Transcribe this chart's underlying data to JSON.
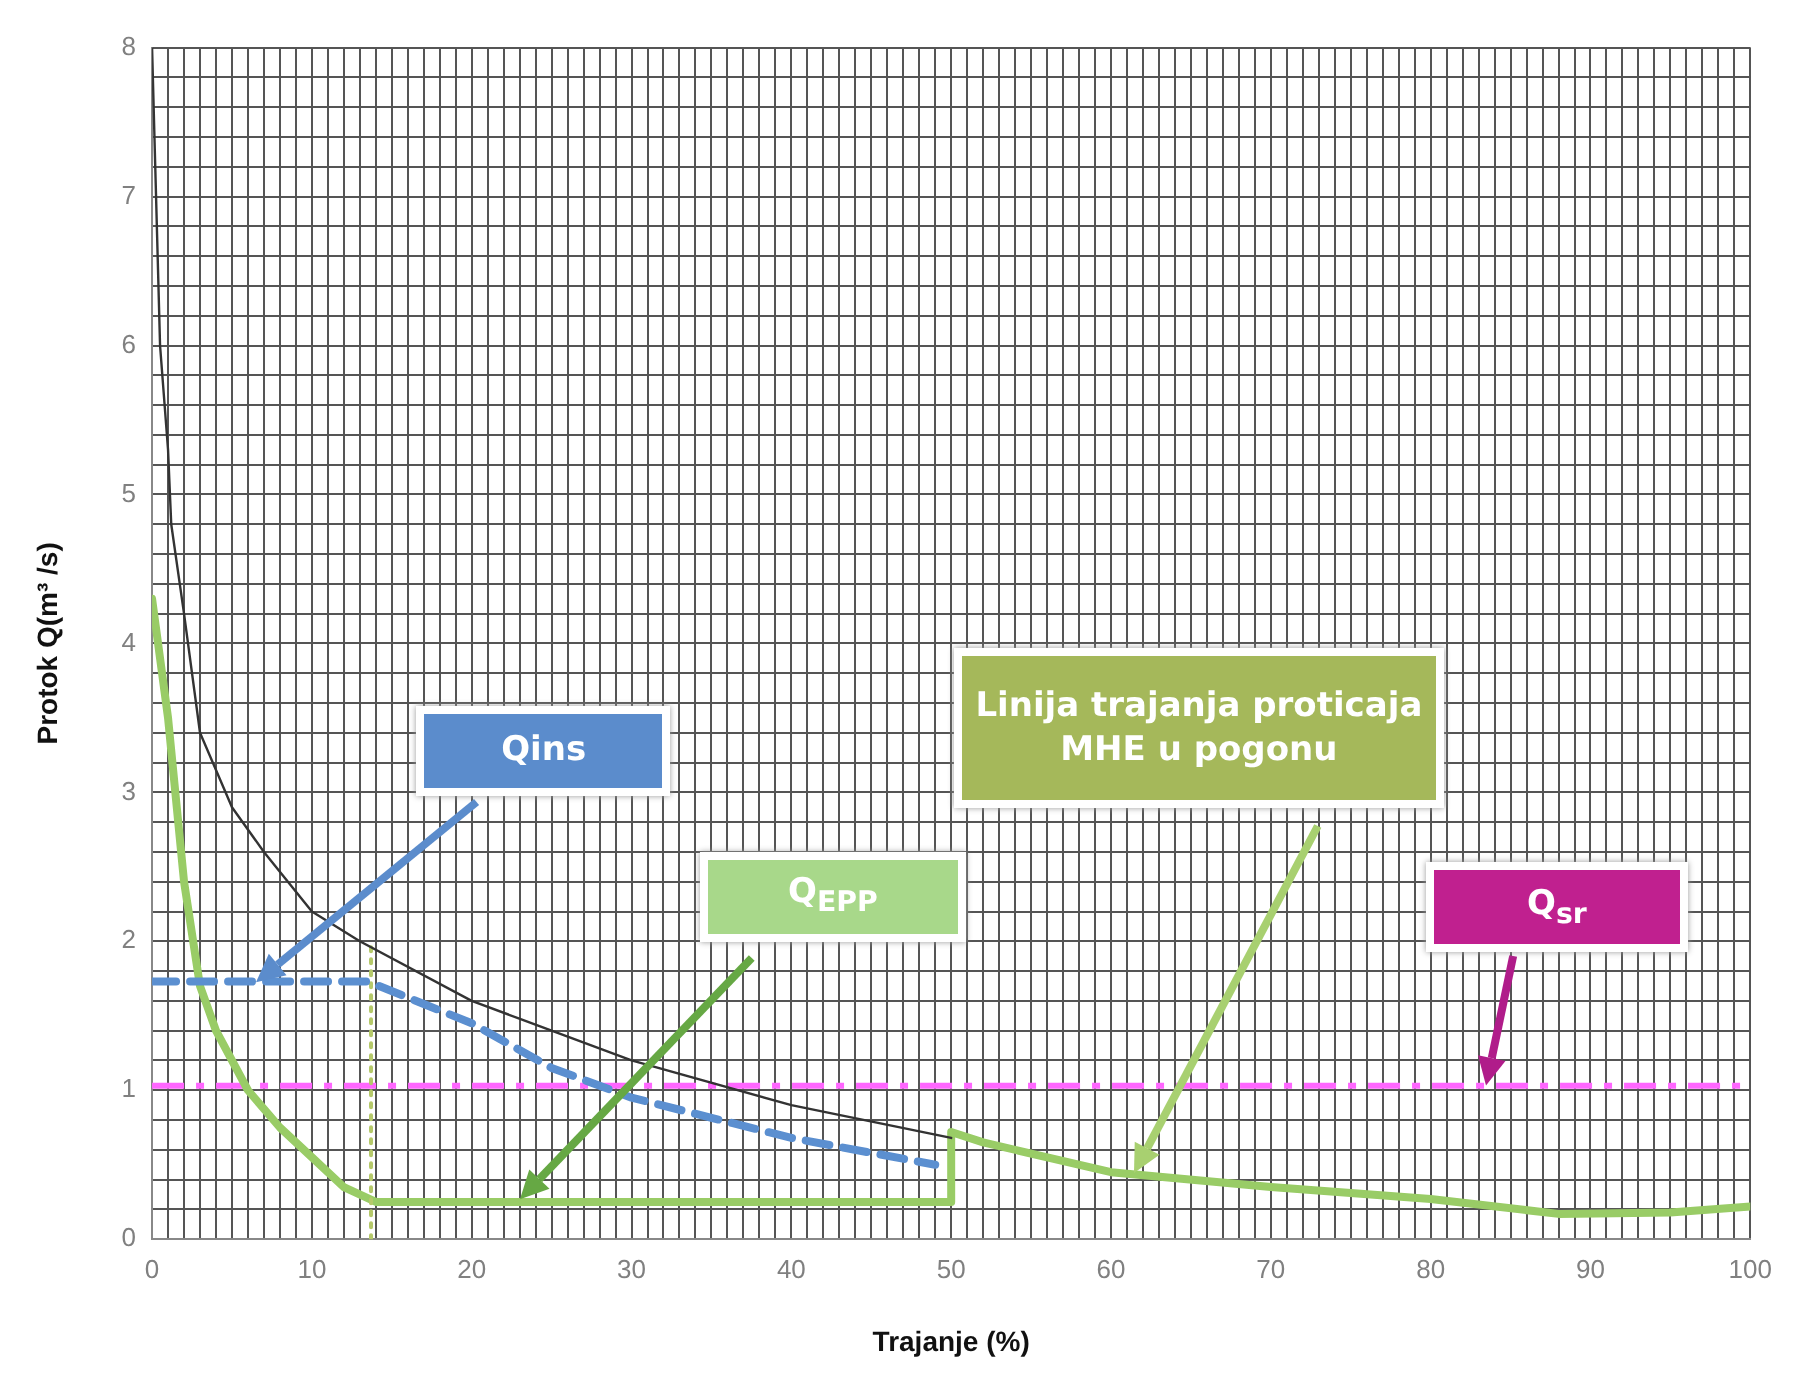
{
  "chart_data": {
    "type": "line",
    "xlabel": "Trajanje (%)",
    "ylabel": "Protok Q(m³ /s)",
    "xlim": [
      0,
      100
    ],
    "ylim": [
      0,
      8
    ],
    "xticks": [
      0,
      {
        "value": 1,
        "label": null
      },
      {
        "value": 2,
        "label": null
      },
      {
        "value": 3,
        "label": null
      },
      {
        "value": 4,
        "label": null
      },
      {
        "value": 5,
        "label": null
      },
      {
        "value": 6,
        "label": null
      },
      {
        "value": 7,
        "label": null
      },
      {
        "value": 8,
        "label": null
      },
      {
        "value": 9,
        "label": null
      },
      10,
      {
        "value": 11,
        "label": null
      },
      {
        "value": 12,
        "label": null
      },
      {
        "value": 13,
        "label": null
      },
      {
        "value": 14,
        "label": null
      },
      {
        "value": 15,
        "label": null
      },
      {
        "value": 16,
        "label": null
      },
      {
        "value": 17,
        "label": null
      },
      {
        "value": 18,
        "label": null
      },
      {
        "value": 19,
        "label": null
      },
      20,
      {
        "value": 21,
        "label": null
      },
      {
        "value": 22,
        "label": null
      },
      {
        "value": 23,
        "label": null
      },
      {
        "value": 24,
        "label": null
      },
      {
        "value": 25,
        "label": null
      },
      {
        "value": 26,
        "label": null
      },
      {
        "value": 27,
        "label": null
      },
      {
        "value": 28,
        "label": null
      },
      {
        "value": 29,
        "label": null
      },
      30,
      {
        "value": 31,
        "label": null
      },
      {
        "value": 32,
        "label": null
      },
      {
        "value": 33,
        "label": null
      },
      {
        "value": 34,
        "label": null
      },
      {
        "value": 35,
        "label": null
      },
      {
        "value": 36,
        "label": null
      },
      {
        "value": 37,
        "label": null
      },
      {
        "value": 38,
        "label": null
      },
      {
        "value": 39,
        "label": null
      },
      40,
      {
        "value": 41,
        "label": null
      },
      {
        "value": 42,
        "label": null
      },
      {
        "value": 43,
        "label": null
      },
      {
        "value": 44,
        "label": null
      },
      {
        "value": 45,
        "label": null
      },
      {
        "value": 46,
        "label": null
      },
      {
        "value": 47,
        "label": null
      },
      {
        "value": 48,
        "label": null
      },
      {
        "value": 49,
        "label": null
      },
      50,
      {
        "value": 51,
        "label": null
      },
      {
        "value": 52,
        "label": null
      },
      {
        "value": 53,
        "label": null
      },
      {
        "value": 54,
        "label": null
      },
      {
        "value": 55,
        "label": null
      },
      {
        "value": 56,
        "label": null
      },
      {
        "value": 57,
        "label": null
      },
      {
        "value": 58,
        "label": null
      },
      {
        "value": 59,
        "label": null
      },
      60,
      {
        "value": 61,
        "label": null
      },
      {
        "value": 62,
        "label": null
      },
      {
        "value": 63,
        "label": null
      },
      {
        "value": 64,
        "label": null
      },
      {
        "value": 65,
        "label": null
      },
      {
        "value": 66,
        "label": null
      },
      {
        "value": 67,
        "label": null
      },
      {
        "value": 68,
        "label": null
      },
      {
        "value": 69,
        "label": null
      },
      70,
      {
        "value": 71,
        "label": null
      },
      {
        "value": 72,
        "label": null
      },
      {
        "value": 73,
        "label": null
      },
      {
        "value": 74,
        "label": null
      },
      {
        "value": 75,
        "label": null
      },
      {
        "value": 76,
        "label": null
      },
      {
        "value": 77,
        "label": null
      },
      {
        "value": 78,
        "label": null
      },
      {
        "value": 79,
        "label": null
      },
      80,
      {
        "value": 81,
        "label": null
      },
      {
        "value": 82,
        "label": null
      },
      {
        "value": 83,
        "label": null
      },
      {
        "value": 84,
        "label": null
      },
      {
        "value": 85,
        "label": null
      },
      {
        "value": 86,
        "label": null
      },
      {
        "value": 87,
        "label": null
      },
      {
        "value": 88,
        "label": null
      },
      {
        "value": 89,
        "label": null
      },
      90,
      {
        "value": 91,
        "label": null
      },
      {
        "value": 92,
        "label": null
      },
      {
        "value": 93,
        "label": null
      },
      {
        "value": 94,
        "label": null
      },
      {
        "value": 95,
        "label": null
      },
      {
        "value": 96,
        "label": null
      },
      {
        "value": 97,
        "label": null
      },
      {
        "value": 98,
        "label": null
      },
      {
        "value": 99,
        "label": null
      },
      100
    ],
    "yticks": [
      0,
      {
        "value": 0.2,
        "label": null
      },
      {
        "value": 0.4,
        "label": null
      },
      {
        "value": 0.6,
        "label": null
      },
      {
        "value": 0.8,
        "label": null
      },
      1,
      {
        "value": 1.2,
        "label": null
      },
      {
        "value": 1.4,
        "label": null
      },
      {
        "value": 1.6,
        "label": null
      },
      {
        "value": 1.8,
        "label": null
      },
      2,
      {
        "value": 2.2,
        "label": null
      },
      {
        "value": 2.4,
        "label": null
      },
      {
        "value": 2.6,
        "label": null
      },
      {
        "value": 2.8,
        "label": null
      },
      3,
      {
        "value": 3.2,
        "label": null
      },
      {
        "value": 3.4,
        "label": null
      },
      {
        "value": 3.6,
        "label": null
      },
      {
        "value": 3.8,
        "label": null
      },
      4,
      {
        "value": 4.2,
        "label": null
      },
      {
        "value": 4.4,
        "label": null
      },
      {
        "value": 4.6,
        "label": null
      },
      {
        "value": 4.8,
        "label": null
      },
      5,
      {
        "value": 5.2,
        "label": null
      },
      {
        "value": 5.4,
        "label": null
      },
      {
        "value": 5.6,
        "label": null
      },
      {
        "value": 5.8,
        "label": null
      },
      6,
      {
        "value": 6.2,
        "label": null
      },
      {
        "value": 6.4,
        "label": null
      },
      {
        "value": 6.6,
        "label": null
      },
      {
        "value": 6.8,
        "label": null
      },
      7,
      {
        "value": 7.2,
        "label": null
      },
      {
        "value": 7.4,
        "label": null
      },
      {
        "value": 7.6,
        "label": null
      },
      {
        "value": 7.8,
        "label": null
      },
      8
    ],
    "grid": true,
    "marker": "none",
    "series": [
      {
        "color": "#333333",
        "line_style": "solid",
        "x": [
          0,
          0.2,
          0.5,
          1,
          1.2,
          2,
          3,
          5,
          7,
          10,
          13,
          20,
          30,
          40,
          50
        ],
        "values": [
          8,
          7.2,
          6,
          5.3,
          4.8,
          4.2,
          3.4,
          2.9,
          2.6,
          2.2,
          2,
          1.6,
          1.2,
          0.9,
          0.68
        ]
      },
      {
        "color": "#5b8fd0",
        "line_style": "dashed",
        "x": [
          0,
          13.5,
          20,
          25,
          30,
          40,
          49
        ],
        "values": [
          1.73,
          1.73,
          1.45,
          1.15,
          0.95,
          0.68,
          0.5
        ]
      },
      {
        "color": "#b5c96a",
        "line_style": "dotted",
        "x": [
          13.7,
          13.7
        ],
        "values": [
          0,
          2
        ]
      },
      {
        "color": "#99cc66",
        "line_style": "solid",
        "x": [
          0,
          1,
          2,
          3,
          4,
          6,
          8,
          10,
          12,
          14,
          50,
          50,
          52,
          60,
          70,
          80,
          88,
          95,
          100
        ],
        "values": [
          4.3,
          3.5,
          2.4,
          1.7,
          1.4,
          1,
          0.75,
          0.55,
          0.35,
          0.25,
          0.25,
          0.72,
          0.65,
          0.45,
          0.35,
          0.27,
          0.17,
          0.18,
          0.22
        ]
      }
    ],
    "ref_lines": [
      {
        "axis": "y",
        "value": 1.03,
        "color": "#ff66ff",
        "line_style": "dashed"
      }
    ],
    "annotations": [
      "Qins",
      "Q$_{EPP}$",
      "Linija trajanja proticaja MHE u pogonu",
      "Q$_{sr}$"
    ]
  }
}
